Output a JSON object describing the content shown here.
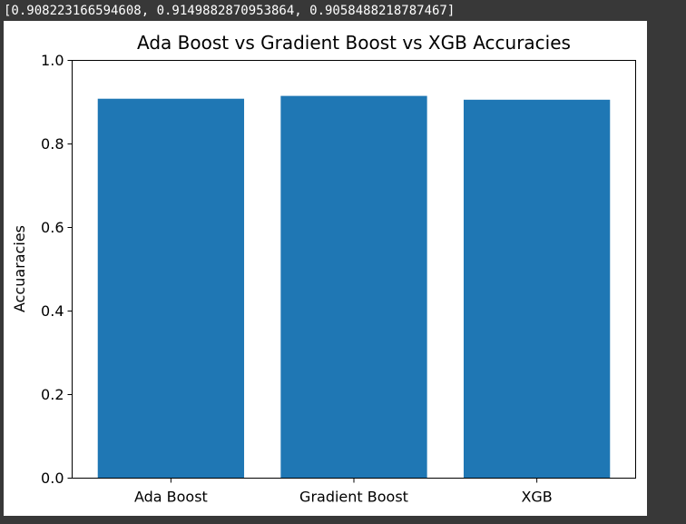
{
  "output": {
    "text": "[0.908223166594608, 0.9149882870953864, 0.9058488218787467]"
  },
  "colors": {
    "background": "#383838",
    "figure": "#ffffff",
    "bar": "#1f77b4"
  },
  "chart_data": {
    "type": "bar",
    "title": "Ada Boost vs Gradient Boost vs XGB Accuracies",
    "xlabel": "",
    "ylabel": "Accuaracies",
    "categories": [
      "Ada Boost",
      "Gradient Boost",
      "XGB"
    ],
    "values": [
      0.908223166594608,
      0.9149882870953864,
      0.9058488218787467
    ],
    "ylim": [
      0,
      1.0
    ],
    "yticks": [
      "0.0",
      "0.2",
      "0.4",
      "0.6",
      "0.8",
      "1.0"
    ],
    "grid": false,
    "legend": "none"
  }
}
